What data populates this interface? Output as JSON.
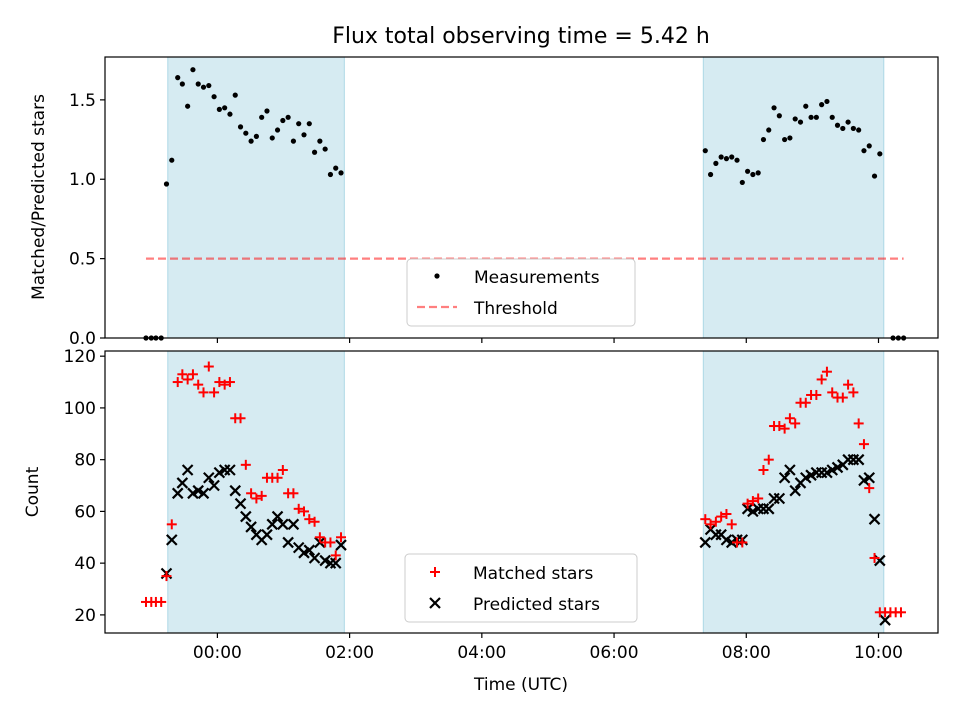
{
  "colors": {
    "shade": "#add8e6",
    "measurement": "#000000",
    "threshold": "#ff0000",
    "matched": "#ff0000",
    "predicted": "#000000"
  },
  "chart_data": [
    {
      "type": "scatter",
      "title": "Flux total observing time = 5.42 h",
      "ylabel": "Matched/Predicted stars",
      "xlabel": "",
      "xlim_hours": [
        -1.7,
        10.9
      ],
      "ylim": [
        0,
        1.77
      ],
      "yticks": [
        0.0,
        0.5,
        1.0,
        1.5
      ],
      "ytick_labels": [
        "0.0",
        "0.5",
        "1.0",
        "1.5"
      ],
      "shaded_intervals_hours": [
        [
          -0.75,
          1.92
        ],
        [
          7.35,
          10.08
        ]
      ],
      "threshold": {
        "name": "Threshold",
        "y": 0.5,
        "x_range_hours": [
          -1.08,
          10.38
        ]
      },
      "legend": {
        "position": "lower-center",
        "entries": [
          "Measurements",
          "Threshold"
        ]
      },
      "series": [
        {
          "name": "Measurements",
          "points": [
            [
              -1.08,
              0.0
            ],
            [
              -1.0,
              0.0
            ],
            [
              -0.93,
              0.0
            ],
            [
              -0.85,
              0.0
            ],
            [
              -0.77,
              0.97
            ],
            [
              -0.69,
              1.12
            ],
            [
              -0.6,
              1.64
            ],
            [
              -0.53,
              1.6
            ],
            [
              -0.45,
              1.46
            ],
            [
              -0.37,
              1.69
            ],
            [
              -0.29,
              1.6
            ],
            [
              -0.21,
              1.58
            ],
            [
              -0.13,
              1.59
            ],
            [
              -0.05,
              1.52
            ],
            [
              0.03,
              1.44
            ],
            [
              0.11,
              1.45
            ],
            [
              0.19,
              1.41
            ],
            [
              0.27,
              1.53
            ],
            [
              0.35,
              1.33
            ],
            [
              0.43,
              1.29
            ],
            [
              0.51,
              1.24
            ],
            [
              0.59,
              1.27
            ],
            [
              0.67,
              1.39
            ],
            [
              0.75,
              1.43
            ],
            [
              0.83,
              1.26
            ],
            [
              0.91,
              1.31
            ],
            [
              0.99,
              1.37
            ],
            [
              1.07,
              1.39
            ],
            [
              1.15,
              1.24
            ],
            [
              1.23,
              1.35
            ],
            [
              1.31,
              1.28
            ],
            [
              1.39,
              1.35
            ],
            [
              1.47,
              1.17
            ],
            [
              1.55,
              1.24
            ],
            [
              1.63,
              1.19
            ],
            [
              1.71,
              1.03
            ],
            [
              1.79,
              1.07
            ],
            [
              1.87,
              1.04
            ],
            [
              7.38,
              1.18
            ],
            [
              7.46,
              1.03
            ],
            [
              7.54,
              1.1
            ],
            [
              7.62,
              1.14
            ],
            [
              7.7,
              1.13
            ],
            [
              7.78,
              1.14
            ],
            [
              7.86,
              1.12
            ],
            [
              7.94,
              0.98
            ],
            [
              8.02,
              1.05
            ],
            [
              8.1,
              1.03
            ],
            [
              8.18,
              1.04
            ],
            [
              8.26,
              1.25
            ],
            [
              8.34,
              1.31
            ],
            [
              8.42,
              1.45
            ],
            [
              8.5,
              1.4
            ],
            [
              8.58,
              1.25
            ],
            [
              8.66,
              1.26
            ],
            [
              8.74,
              1.38
            ],
            [
              8.82,
              1.36
            ],
            [
              8.9,
              1.46
            ],
            [
              8.98,
              1.39
            ],
            [
              9.06,
              1.39
            ],
            [
              9.14,
              1.47
            ],
            [
              9.22,
              1.49
            ],
            [
              9.3,
              1.39
            ],
            [
              9.38,
              1.34
            ],
            [
              9.46,
              1.32
            ],
            [
              9.54,
              1.36
            ],
            [
              9.62,
              1.32
            ],
            [
              9.7,
              1.31
            ],
            [
              9.78,
              1.18
            ],
            [
              9.86,
              1.21
            ],
            [
              9.94,
              1.02
            ],
            [
              10.02,
              1.16
            ],
            [
              10.22,
              0.0
            ],
            [
              10.3,
              0.0
            ],
            [
              10.38,
              0.0
            ]
          ]
        }
      ]
    },
    {
      "type": "scatter",
      "title": "",
      "ylabel": "Count",
      "xlabel": "Time (UTC)",
      "xlim_hours": [
        -1.7,
        10.9
      ],
      "ylim": [
        13,
        122
      ],
      "yticks": [
        20,
        40,
        60,
        80,
        100,
        120
      ],
      "ytick_labels": [
        "20",
        "40",
        "60",
        "80",
        "100",
        "120"
      ],
      "xticks_hours": [
        0,
        2,
        4,
        6,
        8,
        10
      ],
      "xtick_labels": [
        "00:00",
        "02:00",
        "04:00",
        "06:00",
        "08:00",
        "10:00"
      ],
      "shaded_intervals_hours": [
        [
          -0.75,
          1.92
        ],
        [
          7.35,
          10.08
        ]
      ],
      "legend": {
        "position": "lower-center",
        "entries": [
          "Matched stars",
          "Predicted stars"
        ]
      },
      "series": [
        {
          "name": "Matched stars",
          "marker": "plus",
          "points": [
            [
              -1.08,
              25
            ],
            [
              -1.0,
              25
            ],
            [
              -0.93,
              25
            ],
            [
              -0.85,
              25
            ],
            [
              -0.77,
              35
            ],
            [
              -0.69,
              55
            ],
            [
              -0.6,
              110
            ],
            [
              -0.53,
              113
            ],
            [
              -0.45,
              111
            ],
            [
              -0.37,
              113
            ],
            [
              -0.29,
              109
            ],
            [
              -0.21,
              106
            ],
            [
              -0.13,
              116
            ],
            [
              -0.05,
              106
            ],
            [
              0.03,
              110
            ],
            [
              0.11,
              109
            ],
            [
              0.19,
              110
            ],
            [
              0.27,
              96
            ],
            [
              0.35,
              96
            ],
            [
              0.43,
              78
            ],
            [
              0.51,
              67
            ],
            [
              0.59,
              65
            ],
            [
              0.67,
              66
            ],
            [
              0.75,
              73
            ],
            [
              0.83,
              73
            ],
            [
              0.91,
              73
            ],
            [
              0.99,
              76
            ],
            [
              1.07,
              67
            ],
            [
              1.15,
              67
            ],
            [
              1.23,
              61
            ],
            [
              1.31,
              60
            ],
            [
              1.39,
              57
            ],
            [
              1.47,
              56
            ],
            [
              1.55,
              50
            ],
            [
              1.63,
              48
            ],
            [
              1.71,
              48
            ],
            [
              1.79,
              43
            ],
            [
              1.87,
              50
            ],
            [
              7.38,
              57
            ],
            [
              7.46,
              55
            ],
            [
              7.54,
              56
            ],
            [
              7.62,
              58
            ],
            [
              7.7,
              59
            ],
            [
              7.78,
              55
            ],
            [
              7.86,
              48
            ],
            [
              7.94,
              48
            ],
            [
              8.02,
              63
            ],
            [
              8.1,
              64
            ],
            [
              8.18,
              65
            ],
            [
              8.26,
              76
            ],
            [
              8.34,
              80
            ],
            [
              8.42,
              93
            ],
            [
              8.5,
              93
            ],
            [
              8.58,
              92
            ],
            [
              8.66,
              96
            ],
            [
              8.74,
              94
            ],
            [
              8.82,
              102
            ],
            [
              8.9,
              102
            ],
            [
              8.98,
              105
            ],
            [
              9.06,
              105
            ],
            [
              9.14,
              111
            ],
            [
              9.22,
              114
            ],
            [
              9.3,
              106
            ],
            [
              9.38,
              104
            ],
            [
              9.46,
              104
            ],
            [
              9.54,
              109
            ],
            [
              9.62,
              106
            ],
            [
              9.7,
              94
            ],
            [
              9.78,
              86
            ],
            [
              9.86,
              69
            ],
            [
              9.94,
              42
            ],
            [
              10.02,
              21
            ],
            [
              10.1,
              21
            ],
            [
              10.18,
              21
            ],
            [
              10.26,
              21
            ],
            [
              10.34,
              21
            ]
          ]
        },
        {
          "name": "Predicted stars",
          "marker": "x",
          "points": [
            [
              -0.77,
              36
            ],
            [
              -0.69,
              49
            ],
            [
              -0.6,
              67
            ],
            [
              -0.53,
              71
            ],
            [
              -0.45,
              76
            ],
            [
              -0.37,
              67
            ],
            [
              -0.29,
              68
            ],
            [
              -0.21,
              67
            ],
            [
              -0.13,
              73
            ],
            [
              -0.05,
              70
            ],
            [
              0.03,
              75
            ],
            [
              0.11,
              76
            ],
            [
              0.19,
              76
            ],
            [
              0.27,
              68
            ],
            [
              0.35,
              63
            ],
            [
              0.43,
              58
            ],
            [
              0.51,
              54
            ],
            [
              0.59,
              51
            ],
            [
              0.67,
              49
            ],
            [
              0.75,
              51
            ],
            [
              0.83,
              55
            ],
            [
              0.91,
              58
            ],
            [
              0.99,
              55
            ],
            [
              1.07,
              48
            ],
            [
              1.15,
              55
            ],
            [
              1.23,
              46
            ],
            [
              1.31,
              44
            ],
            [
              1.39,
              45
            ],
            [
              1.47,
              42
            ],
            [
              1.55,
              48
            ],
            [
              1.63,
              41
            ],
            [
              1.71,
              40
            ],
            [
              1.79,
              40
            ],
            [
              1.87,
              47
            ],
            [
              7.38,
              48
            ],
            [
              7.46,
              53
            ],
            [
              7.54,
              51
            ],
            [
              7.62,
              51
            ],
            [
              7.7,
              49
            ],
            [
              7.78,
              48
            ],
            [
              7.86,
              49
            ],
            [
              7.94,
              49
            ],
            [
              8.02,
              61
            ],
            [
              8.1,
              60
            ],
            [
              8.18,
              61
            ],
            [
              8.26,
              61
            ],
            [
              8.34,
              61
            ],
            [
              8.42,
              65
            ],
            [
              8.5,
              65
            ],
            [
              8.58,
              73
            ],
            [
              8.66,
              76
            ],
            [
              8.74,
              68
            ],
            [
              8.82,
              71
            ],
            [
              8.9,
              73
            ],
            [
              8.98,
              74
            ],
            [
              9.06,
              75
            ],
            [
              9.14,
              75
            ],
            [
              9.22,
              75
            ],
            [
              9.3,
              76
            ],
            [
              9.38,
              77
            ],
            [
              9.46,
              78
            ],
            [
              9.54,
              80
            ],
            [
              9.62,
              80
            ],
            [
              9.7,
              80
            ],
            [
              9.78,
              72
            ],
            [
              9.86,
              73
            ],
            [
              9.94,
              57
            ],
            [
              10.02,
              41
            ],
            [
              10.1,
              18
            ]
          ]
        }
      ]
    }
  ]
}
